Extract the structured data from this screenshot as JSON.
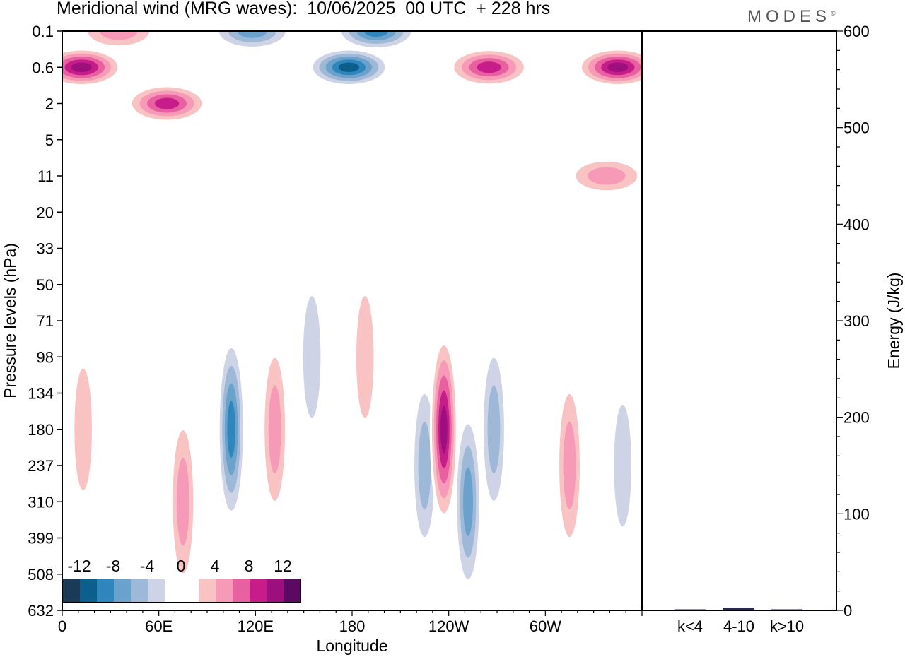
{
  "header": {
    "title": "Meridional wind (MRG waves):  10/06/2025  00 UTC  + 228 hrs",
    "logo": "MODES",
    "logo_mark": "©"
  },
  "colors": {
    "scale": [
      "#1b3a57",
      "#0c5f8c",
      "#2f86bc",
      "#6aa2cc",
      "#9eb8d8",
      "#ced4e6",
      "#ffffff",
      "#ffffff",
      "#f9c3c3",
      "#f69ab8",
      "#e8609f",
      "#c71d8b",
      "#9c0f7d",
      "#5a0a60"
    ]
  },
  "colorbar": {
    "labels": [
      "-12",
      "-8",
      "-4",
      "0",
      "4",
      "8",
      "12"
    ]
  },
  "chart_data": [
    {
      "type": "heatmap",
      "title": "Meridional wind (MRG waves):  10/06/2025  00 UTC  + 228 hrs",
      "xlabel": "Longitude",
      "ylabel": "Pressure levels (hPa)",
      "x_ticks": [
        "0",
        "60E",
        "120E",
        "180",
        "120W",
        "60W"
      ],
      "x_tick_values": [
        0,
        60,
        120,
        180,
        240,
        300
      ],
      "xlim": [
        0,
        360
      ],
      "y_ticks": [
        "0.1",
        "0.6",
        "2",
        "5",
        "11",
        "20",
        "33",
        "50",
        "71",
        "98",
        "134",
        "180",
        "237",
        "310",
        "399",
        "508",
        "632"
      ],
      "color_levels": [
        -12,
        -10,
        -8,
        -6,
        -4,
        -2,
        0,
        2,
        4,
        6,
        8,
        10,
        12
      ],
      "features": [
        {
          "lon": 12,
          "level": "0.6",
          "v": 12
        },
        {
          "lon": 65,
          "level": "2",
          "v": 10
        },
        {
          "lon": 35,
          "level": "0.1",
          "v": 6
        },
        {
          "lon": 118,
          "level": "0.1",
          "v": -8
        },
        {
          "lon": 178,
          "level": "0.6",
          "v": -12
        },
        {
          "lon": 195,
          "level": "0.1",
          "v": -10
        },
        {
          "lon": 265,
          "level": "0.6",
          "v": 10
        },
        {
          "lon": 345,
          "level": "0.6",
          "v": 12
        },
        {
          "lon": 338,
          "level": "11",
          "v": 6
        },
        {
          "lon": 105,
          "level": "180",
          "v": -10
        },
        {
          "lon": 132,
          "level": "180",
          "v": 6
        },
        {
          "lon": 155,
          "level": "98",
          "v": -4
        },
        {
          "lon": 188,
          "level": "98",
          "v": 4
        },
        {
          "lon": 225,
          "level": "237",
          "v": -6
        },
        {
          "lon": 237,
          "level": "180",
          "v": 12
        },
        {
          "lon": 252,
          "level": "310",
          "v": -8
        },
        {
          "lon": 268,
          "level": "180",
          "v": -6
        },
        {
          "lon": 315,
          "level": "237",
          "v": 6
        },
        {
          "lon": 348,
          "level": "237",
          "v": -4
        },
        {
          "lon": 13,
          "level": "180",
          "v": 4
        },
        {
          "lon": 75,
          "level": "310",
          "v": 6
        }
      ]
    },
    {
      "type": "bar",
      "ylabel": "Energy (J/kg)",
      "categories": [
        "k<4",
        "4-10",
        "k>10"
      ],
      "values": [
        0.3,
        2.5,
        0.4
      ],
      "ylim": [
        0,
        600
      ],
      "y_ticks": [
        "0",
        "100",
        "200",
        "300",
        "400",
        "500",
        "600"
      ],
      "bar_color": "#2a2a5a"
    }
  ]
}
